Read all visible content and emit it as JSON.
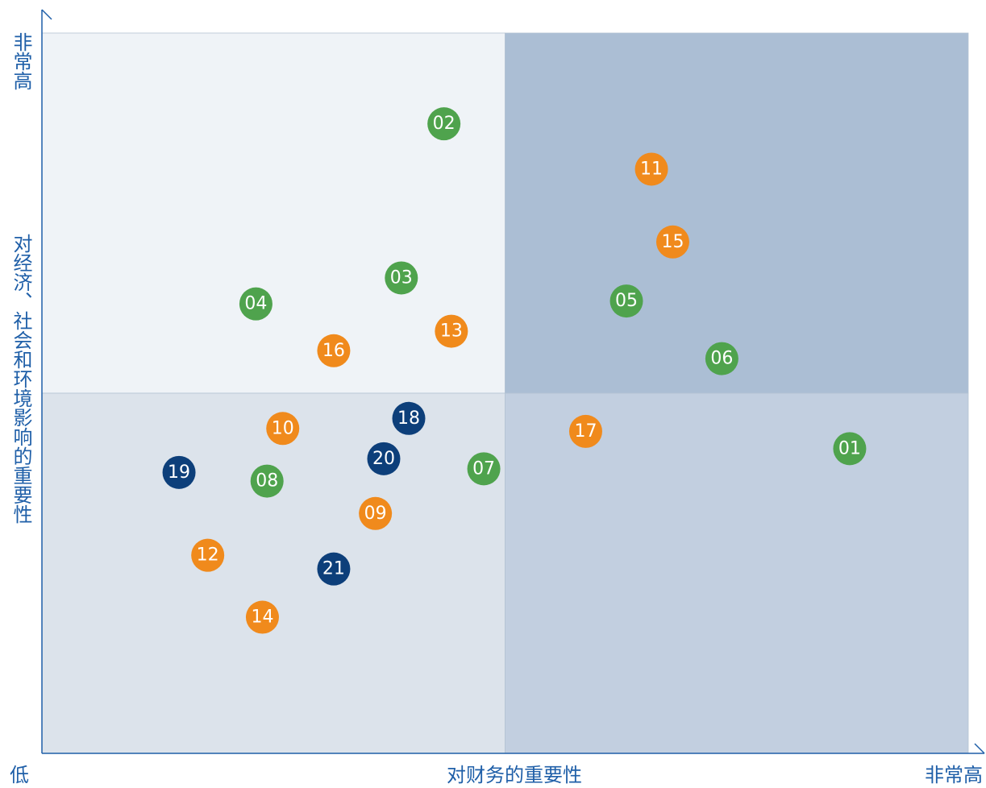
{
  "chart_data": {
    "type": "scatter",
    "y_label_top": "非常高",
    "y_label": "对经济、社会和环境影响的重要性",
    "origin_label": "低",
    "x_label": "对财务的重要性",
    "x_label_right": "非常高",
    "xlim": [
      0,
      100
    ],
    "ylim": [
      0,
      100
    ],
    "quadrant_colors": [
      "#eff3f7",
      "#abbed4",
      "#dce3eb",
      "#c2cfe0"
    ],
    "points": [
      {
        "label": "01",
        "x": 87.2,
        "y": 42.3,
        "color": "#4fa34d"
      },
      {
        "label": "02",
        "x": 43.4,
        "y": 87.4,
        "color": "#4fa34d"
      },
      {
        "label": "03",
        "x": 38.8,
        "y": 66.0,
        "color": "#4fa34d"
      },
      {
        "label": "04",
        "x": 23.1,
        "y": 62.4,
        "color": "#4fa34d"
      },
      {
        "label": "05",
        "x": 63.1,
        "y": 62.8,
        "color": "#4fa34d"
      },
      {
        "label": "06",
        "x": 73.4,
        "y": 54.8,
        "color": "#4fa34d"
      },
      {
        "label": "07",
        "x": 47.7,
        "y": 39.5,
        "color": "#4fa34d"
      },
      {
        "label": "08",
        "x": 24.3,
        "y": 37.8,
        "color": "#4fa34d"
      },
      {
        "label": "09",
        "x": 36.0,
        "y": 33.3,
        "color": "#f08a1c"
      },
      {
        "label": "10",
        "x": 26.0,
        "y": 45.1,
        "color": "#f08a1c"
      },
      {
        "label": "11",
        "x": 65.8,
        "y": 81.1,
        "color": "#f08a1c"
      },
      {
        "label": "12",
        "x": 17.9,
        "y": 27.5,
        "color": "#f08a1c"
      },
      {
        "label": "13",
        "x": 44.2,
        "y": 58.6,
        "color": "#f08a1c"
      },
      {
        "label": "14",
        "x": 23.8,
        "y": 18.9,
        "color": "#f08a1c"
      },
      {
        "label": "15",
        "x": 68.1,
        "y": 71.0,
        "color": "#f08a1c"
      },
      {
        "label": "16",
        "x": 31.5,
        "y": 55.9,
        "color": "#f08a1c"
      },
      {
        "label": "17",
        "x": 58.7,
        "y": 44.7,
        "color": "#f08a1c"
      },
      {
        "label": "18",
        "x": 39.6,
        "y": 46.5,
        "color": "#0d3f7a"
      },
      {
        "label": "19",
        "x": 14.8,
        "y": 39.0,
        "color": "#0d3f7a"
      },
      {
        "label": "20",
        "x": 36.9,
        "y": 40.9,
        "color": "#0d3f7a"
      },
      {
        "label": "21",
        "x": 31.5,
        "y": 25.6,
        "color": "#0d3f7a"
      }
    ]
  }
}
